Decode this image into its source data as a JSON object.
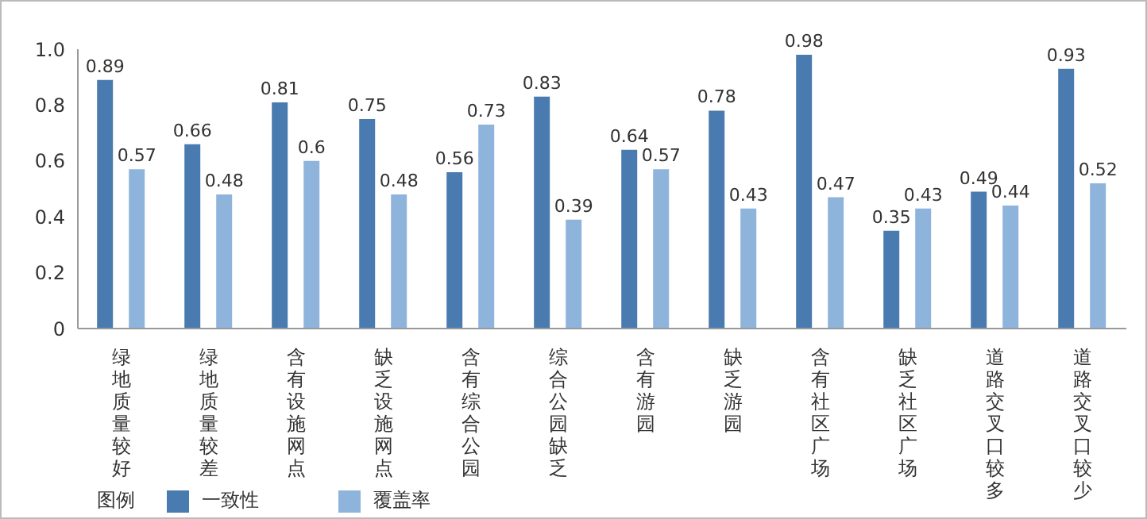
{
  "chart_data": {
    "type": "bar",
    "legend_title": "图例",
    "categories": [
      "绿地质量较好",
      "绿地质量较差",
      "含有设施网点",
      "缺乏设施网点",
      "含有综合公园",
      "综合公园缺乏",
      "含有游园",
      "缺乏游园",
      "含有社区广场",
      "缺乏社区广场",
      "道路交叉口较多",
      "道路交叉口较少"
    ],
    "series": [
      {
        "name": "一致性",
        "color": "#4a7bb0",
        "values": [
          0.89,
          0.66,
          0.81,
          0.75,
          0.56,
          0.83,
          0.64,
          0.78,
          0.98,
          0.35,
          0.49,
          0.93
        ]
      },
      {
        "name": "覆盖率",
        "color": "#8fb4dc",
        "values": [
          0.57,
          0.48,
          0.6,
          0.48,
          0.73,
          0.39,
          0.57,
          0.43,
          0.47,
          0.43,
          0.44,
          0.52
        ]
      }
    ],
    "ylim": [
      0,
      1
    ],
    "yticks": [
      0,
      0.2,
      0.4,
      0.6,
      {
        "value": 0.8,
        "label": "0.8"
      },
      {
        "value": 1,
        "label": "1.0"
      }
    ],
    "data_labels": true,
    "grid": false,
    "legend": "bottom left"
  }
}
